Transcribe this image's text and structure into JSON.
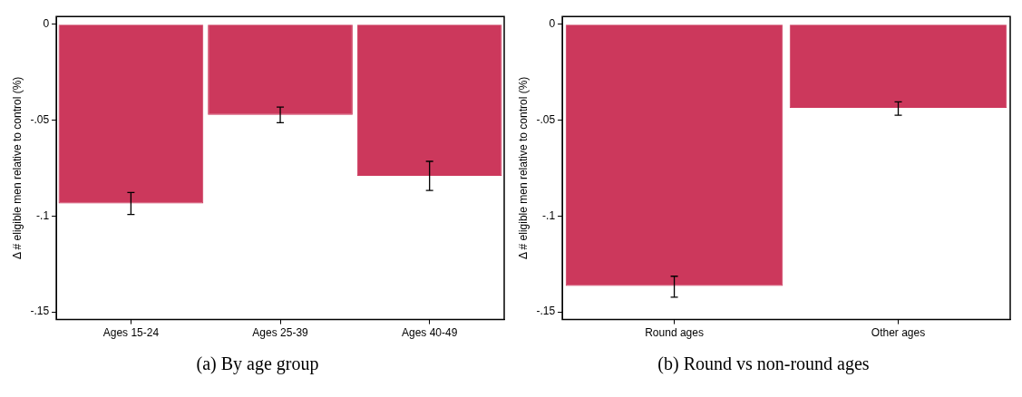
{
  "chart_data": [
    {
      "type": "bar",
      "ylabel": "Δ # eligible men relative to control (%)",
      "categories": [
        "Ages 15-24",
        "Ages 25-39",
        "Ages 40-49"
      ],
      "values": [
        -0.0935,
        -0.0473,
        -0.0791
      ],
      "color": "#cc385c",
      "errors": [
        [
          -0.0992,
          -0.0877
        ],
        [
          -0.0514,
          -0.0432
        ],
        [
          -0.0867,
          -0.0715
        ]
      ],
      "ylim": [
        -0.154,
        0.004
      ],
      "yticks": [
        0,
        {
          "value": -0.05,
          "label": "-.05"
        },
        {
          "value": -0.1,
          "label": "-.1"
        },
        {
          "value": -0.15,
          "label": "-.15"
        }
      ],
      "grid": false,
      "legend": false,
      "annotations": [
        "(a) By age group"
      ]
    },
    {
      "type": "bar",
      "ylabel": "Δ # eligible men relative to control (%)",
      "categories": [
        "Round ages",
        "Other ages"
      ],
      "values": [
        -0.1365,
        -0.0436
      ],
      "color": "#cc385c",
      "errors": [
        [
          -0.1423,
          -0.1314
        ],
        [
          -0.0475,
          -0.0405
        ]
      ],
      "ylim": [
        -0.154,
        0.004
      ],
      "yticks": [
        0,
        {
          "value": -0.05,
          "label": "-.05"
        },
        {
          "value": -0.1,
          "label": "-.1"
        },
        {
          "value": -0.15,
          "label": "-.15"
        }
      ],
      "grid": false,
      "legend": false,
      "annotations": [
        "(b) Round vs non-round ages"
      ]
    }
  ]
}
